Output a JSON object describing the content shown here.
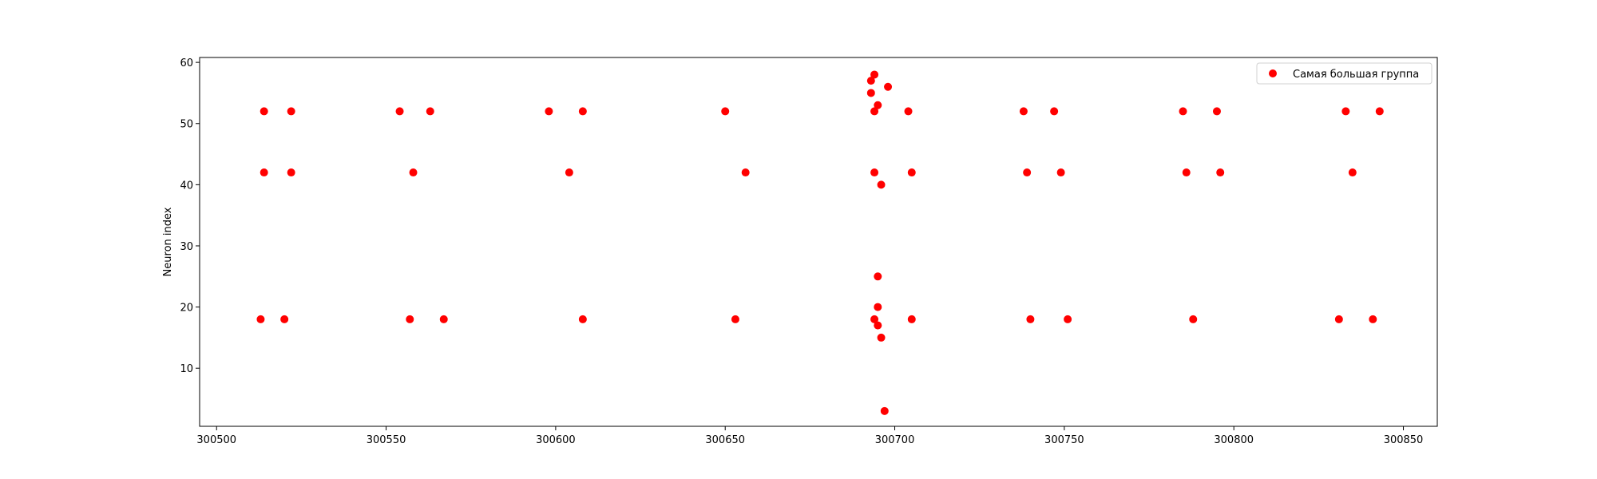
{
  "chart_data": {
    "type": "scatter",
    "title": "",
    "xlabel": "",
    "ylabel": "Neuron index",
    "xlim": [
      300495,
      300860
    ],
    "ylim": [
      0.5,
      60.8
    ],
    "xticks": [
      300500,
      300550,
      300600,
      300650,
      300700,
      300750,
      300800,
      300850
    ],
    "xtick_labels": [
      "300500",
      "300550",
      "300600",
      "300650",
      "300700",
      "300750",
      "300800",
      "300850"
    ],
    "yticks": [
      10,
      20,
      30,
      40,
      50,
      60
    ],
    "ytick_labels": [
      "10",
      "20",
      "30",
      "40",
      "50",
      "60"
    ],
    "grid": false,
    "legend_position": "top-right",
    "series": [
      {
        "name": "Самая большая группа",
        "color": "#ff0000",
        "points": [
          [
            300514,
            52
          ],
          [
            300522,
            52
          ],
          [
            300554,
            52
          ],
          [
            300563,
            52
          ],
          [
            300598,
            52
          ],
          [
            300608,
            52
          ],
          [
            300650,
            52
          ],
          [
            300704,
            52
          ],
          [
            300738,
            52
          ],
          [
            300747,
            52
          ],
          [
            300785,
            52
          ],
          [
            300795,
            52
          ],
          [
            300833,
            52
          ],
          [
            300843,
            52
          ],
          [
            300514,
            42
          ],
          [
            300522,
            42
          ],
          [
            300558,
            42
          ],
          [
            300604,
            42
          ],
          [
            300656,
            42
          ],
          [
            300694,
            42
          ],
          [
            300705,
            42
          ],
          [
            300739,
            42
          ],
          [
            300749,
            42
          ],
          [
            300786,
            42
          ],
          [
            300796,
            42
          ],
          [
            300835,
            42
          ],
          [
            300513,
            18
          ],
          [
            300520,
            18
          ],
          [
            300557,
            18
          ],
          [
            300567,
            18
          ],
          [
            300608,
            18
          ],
          [
            300653,
            18
          ],
          [
            300694,
            18
          ],
          [
            300705,
            18
          ],
          [
            300740,
            18
          ],
          [
            300751,
            18
          ],
          [
            300788,
            18
          ],
          [
            300831,
            18
          ],
          [
            300841,
            18
          ],
          [
            300693,
            57
          ],
          [
            300694,
            58
          ],
          [
            300693,
            55
          ],
          [
            300698,
            56
          ],
          [
            300695,
            53
          ],
          [
            300694,
            52
          ],
          [
            300696,
            40
          ],
          [
            300695,
            25
          ],
          [
            300695,
            20
          ],
          [
            300695,
            17
          ],
          [
            300696,
            15
          ],
          [
            300697,
            3
          ]
        ]
      }
    ]
  }
}
